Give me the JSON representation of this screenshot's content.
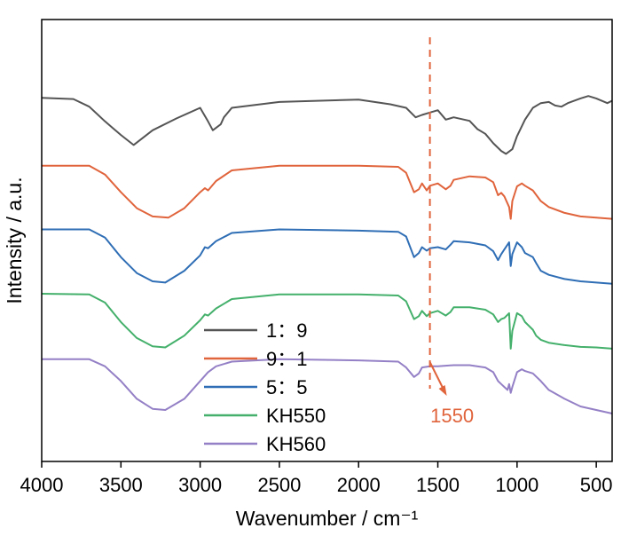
{
  "chart_data": {
    "type": "line",
    "title": "",
    "xlabel": "Wavenumber / cm⁻¹",
    "ylabel": "Intensity / a.u.",
    "xlim": [
      4000,
      400
    ],
    "x_reversed": true,
    "x_ticks": [
      4000,
      3500,
      3000,
      2500,
      2000,
      1500,
      1000,
      500
    ],
    "y_ticks_shown": false,
    "grid": false,
    "legend_position": "bottom-center",
    "legend": [
      "1：9",
      "9：1",
      "5：5",
      "KH550",
      "KH560"
    ],
    "annotation": {
      "label": "1550",
      "x": 1550,
      "style": "dashed-vertical-line-with-arrow",
      "color": "#e0643c"
    },
    "series": [
      {
        "name": "1：9",
        "color": "#555555",
        "offset": 4.4,
        "points": [
          [
            4000,
            0.95
          ],
          [
            3800,
            0.93
          ],
          [
            3700,
            0.8
          ],
          [
            3600,
            0.55
          ],
          [
            3500,
            0.32
          ],
          [
            3420,
            0.15
          ],
          [
            3300,
            0.4
          ],
          [
            3150,
            0.6
          ],
          [
            3000,
            0.78
          ],
          [
            2950,
            0.55
          ],
          [
            2920,
            0.4
          ],
          [
            2870,
            0.5
          ],
          [
            2850,
            0.62
          ],
          [
            2800,
            0.78
          ],
          [
            2500,
            0.88
          ],
          [
            2000,
            0.92
          ],
          [
            1800,
            0.84
          ],
          [
            1700,
            0.78
          ],
          [
            1640,
            0.62
          ],
          [
            1600,
            0.66
          ],
          [
            1550,
            0.7
          ],
          [
            1500,
            0.74
          ],
          [
            1450,
            0.58
          ],
          [
            1400,
            0.62
          ],
          [
            1300,
            0.56
          ],
          [
            1250,
            0.42
          ],
          [
            1200,
            0.34
          ],
          [
            1150,
            0.18
          ],
          [
            1100,
            0.05
          ],
          [
            1070,
            0.0
          ],
          [
            1030,
            0.08
          ],
          [
            1000,
            0.3
          ],
          [
            950,
            0.58
          ],
          [
            900,
            0.78
          ],
          [
            850,
            0.86
          ],
          [
            800,
            0.88
          ],
          [
            760,
            0.82
          ],
          [
            720,
            0.8
          ],
          [
            680,
            0.86
          ],
          [
            600,
            0.94
          ],
          [
            550,
            0.98
          ],
          [
            500,
            0.94
          ],
          [
            430,
            0.86
          ],
          [
            400,
            0.9
          ]
        ]
      },
      {
        "name": "9：1",
        "color": "#e0643c",
        "offset": 3.3,
        "points": [
          [
            4000,
            0.9
          ],
          [
            3700,
            0.9
          ],
          [
            3600,
            0.75
          ],
          [
            3500,
            0.45
          ],
          [
            3400,
            0.18
          ],
          [
            3300,
            0.04
          ],
          [
            3200,
            0.02
          ],
          [
            3100,
            0.18
          ],
          [
            3000,
            0.45
          ],
          [
            2970,
            0.52
          ],
          [
            2950,
            0.48
          ],
          [
            2900,
            0.64
          ],
          [
            2800,
            0.82
          ],
          [
            2500,
            0.9
          ],
          [
            2000,
            0.9
          ],
          [
            1750,
            0.88
          ],
          [
            1700,
            0.78
          ],
          [
            1650,
            0.45
          ],
          [
            1620,
            0.5
          ],
          [
            1600,
            0.6
          ],
          [
            1570,
            0.48
          ],
          [
            1550,
            0.56
          ],
          [
            1500,
            0.6
          ],
          [
            1450,
            0.5
          ],
          [
            1420,
            0.56
          ],
          [
            1400,
            0.66
          ],
          [
            1300,
            0.72
          ],
          [
            1200,
            0.7
          ],
          [
            1150,
            0.62
          ],
          [
            1120,
            0.4
          ],
          [
            1100,
            0.44
          ],
          [
            1080,
            0.38
          ],
          [
            1050,
            0.2
          ],
          [
            1040,
            0.0
          ],
          [
            1030,
            0.3
          ],
          [
            1000,
            0.55
          ],
          [
            970,
            0.6
          ],
          [
            950,
            0.56
          ],
          [
            900,
            0.48
          ],
          [
            850,
            0.3
          ],
          [
            800,
            0.2
          ],
          [
            700,
            0.1
          ],
          [
            600,
            0.04
          ],
          [
            500,
            0.02
          ],
          [
            400,
            0.0
          ]
        ]
      },
      {
        "name": "5：5",
        "color": "#2f6eb5",
        "offset": 2.2,
        "points": [
          [
            4000,
            0.92
          ],
          [
            3700,
            0.92
          ],
          [
            3600,
            0.78
          ],
          [
            3500,
            0.45
          ],
          [
            3400,
            0.18
          ],
          [
            3300,
            0.04
          ],
          [
            3220,
            0.02
          ],
          [
            3100,
            0.22
          ],
          [
            3000,
            0.48
          ],
          [
            2970,
            0.62
          ],
          [
            2950,
            0.6
          ],
          [
            2900,
            0.72
          ],
          [
            2800,
            0.86
          ],
          [
            2500,
            0.92
          ],
          [
            2000,
            0.9
          ],
          [
            1750,
            0.88
          ],
          [
            1700,
            0.8
          ],
          [
            1650,
            0.45
          ],
          [
            1620,
            0.52
          ],
          [
            1600,
            0.62
          ],
          [
            1570,
            0.56
          ],
          [
            1550,
            0.6
          ],
          [
            1500,
            0.62
          ],
          [
            1450,
            0.58
          ],
          [
            1420,
            0.66
          ],
          [
            1400,
            0.72
          ],
          [
            1300,
            0.7
          ],
          [
            1200,
            0.65
          ],
          [
            1150,
            0.55
          ],
          [
            1120,
            0.4
          ],
          [
            1100,
            0.5
          ],
          [
            1080,
            0.58
          ],
          [
            1050,
            0.7
          ],
          [
            1040,
            0.3
          ],
          [
            1030,
            0.5
          ],
          [
            1000,
            0.7
          ],
          [
            970,
            0.62
          ],
          [
            950,
            0.52
          ],
          [
            900,
            0.45
          ],
          [
            880,
            0.35
          ],
          [
            850,
            0.22
          ],
          [
            800,
            0.15
          ],
          [
            700,
            0.08
          ],
          [
            600,
            0.04
          ],
          [
            500,
            0.02
          ],
          [
            400,
            0.0
          ]
        ]
      },
      {
        "name": "KH550",
        "color": "#44b06b",
        "offset": 1.1,
        "points": [
          [
            4000,
            0.93
          ],
          [
            3700,
            0.92
          ],
          [
            3600,
            0.78
          ],
          [
            3500,
            0.45
          ],
          [
            3400,
            0.18
          ],
          [
            3300,
            0.04
          ],
          [
            3220,
            0.02
          ],
          [
            3100,
            0.22
          ],
          [
            3000,
            0.48
          ],
          [
            2970,
            0.58
          ],
          [
            2950,
            0.56
          ],
          [
            2900,
            0.68
          ],
          [
            2800,
            0.84
          ],
          [
            2500,
            0.92
          ],
          [
            2000,
            0.92
          ],
          [
            1750,
            0.9
          ],
          [
            1700,
            0.8
          ],
          [
            1650,
            0.5
          ],
          [
            1620,
            0.55
          ],
          [
            1600,
            0.64
          ],
          [
            1570,
            0.55
          ],
          [
            1550,
            0.6
          ],
          [
            1500,
            0.64
          ],
          [
            1450,
            0.56
          ],
          [
            1420,
            0.62
          ],
          [
            1400,
            0.7
          ],
          [
            1300,
            0.7
          ],
          [
            1200,
            0.66
          ],
          [
            1150,
            0.58
          ],
          [
            1120,
            0.45
          ],
          [
            1100,
            0.5
          ],
          [
            1080,
            0.52
          ],
          [
            1050,
            0.6
          ],
          [
            1040,
            0.0
          ],
          [
            1030,
            0.3
          ],
          [
            1000,
            0.6
          ],
          [
            970,
            0.55
          ],
          [
            950,
            0.45
          ],
          [
            900,
            0.32
          ],
          [
            880,
            0.22
          ],
          [
            850,
            0.15
          ],
          [
            800,
            0.1
          ],
          [
            700,
            0.06
          ],
          [
            600,
            0.03
          ],
          [
            500,
            0.02
          ],
          [
            400,
            0.0
          ]
        ]
      },
      {
        "name": "KH560",
        "color": "#9480c6",
        "offset": 0.0,
        "points": [
          [
            4000,
            0.92
          ],
          [
            3700,
            0.92
          ],
          [
            3600,
            0.8
          ],
          [
            3500,
            0.55
          ],
          [
            3400,
            0.25
          ],
          [
            3300,
            0.08
          ],
          [
            3220,
            0.06
          ],
          [
            3100,
            0.25
          ],
          [
            3000,
            0.55
          ],
          [
            2950,
            0.7
          ],
          [
            2900,
            0.8
          ],
          [
            2800,
            0.88
          ],
          [
            2500,
            0.92
          ],
          [
            2000,
            0.9
          ],
          [
            1750,
            0.88
          ],
          [
            1700,
            0.78
          ],
          [
            1650,
            0.62
          ],
          [
            1620,
            0.68
          ],
          [
            1600,
            0.78
          ],
          [
            1550,
            0.8
          ],
          [
            1500,
            0.8
          ],
          [
            1400,
            0.82
          ],
          [
            1300,
            0.82
          ],
          [
            1200,
            0.78
          ],
          [
            1150,
            0.7
          ],
          [
            1120,
            0.55
          ],
          [
            1100,
            0.5
          ],
          [
            1080,
            0.45
          ],
          [
            1060,
            0.4
          ],
          [
            1050,
            0.5
          ],
          [
            1040,
            0.35
          ],
          [
            1030,
            0.45
          ],
          [
            1000,
            0.7
          ],
          [
            970,
            0.75
          ],
          [
            950,
            0.72
          ],
          [
            900,
            0.68
          ],
          [
            850,
            0.55
          ],
          [
            800,
            0.4
          ],
          [
            700,
            0.25
          ],
          [
            600,
            0.12
          ],
          [
            500,
            0.06
          ],
          [
            400,
            0.0
          ]
        ]
      }
    ]
  }
}
